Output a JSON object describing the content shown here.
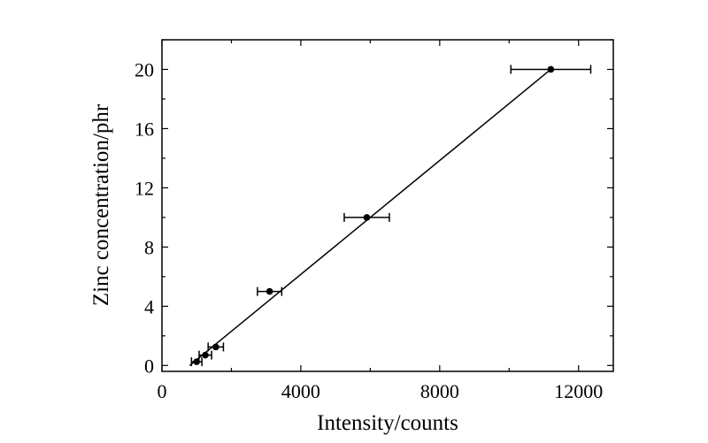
{
  "chart_data": {
    "type": "scatter",
    "xlabel": "Intensity/counts",
    "ylabel": "Zinc concentration/phr",
    "xlim": [
      0,
      13000
    ],
    "ylim": [
      -0.4,
      22
    ],
    "xticks": [
      0,
      4000,
      8000,
      12000
    ],
    "yticks": [
      0,
      4,
      8,
      12,
      16,
      20
    ],
    "xtick_labels": [
      "0",
      "4000",
      "8000",
      "12000"
    ],
    "ytick_labels": [
      "0",
      "4",
      "8",
      "12",
      "16",
      "20"
    ],
    "grid": false,
    "legend": "none",
    "series": [
      {
        "points": [
          {
            "x": 1000,
            "y": 0.25,
            "xerr": 150
          },
          {
            "x": 1250,
            "y": 0.7,
            "xerr": 180
          },
          {
            "x": 1550,
            "y": 1.25,
            "xerr": 220
          },
          {
            "x": 3100,
            "y": 5.0,
            "xerr": 350
          },
          {
            "x": 5900,
            "y": 10.0,
            "xerr": 650
          },
          {
            "x": 11200,
            "y": 20.0,
            "xerr": 1150
          }
        ]
      }
    ],
    "fit_line": {
      "x": [
        800,
        11200
      ],
      "y": [
        0.0,
        20.0
      ]
    }
  }
}
